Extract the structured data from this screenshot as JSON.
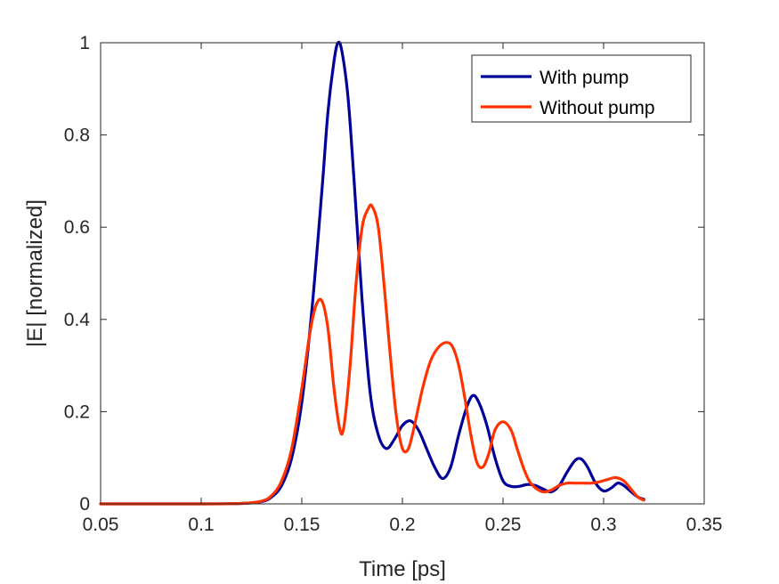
{
  "chart_data": {
    "type": "line",
    "title": "",
    "xlabel": "Time [ps]",
    "ylabel": "|E| [normalized]",
    "xlim": [
      0.05,
      0.35
    ],
    "ylim": [
      0,
      1
    ],
    "xticks": [
      0.05,
      0.1,
      0.15,
      0.2,
      0.25,
      0.3,
      0.35
    ],
    "xtick_labels": [
      "0.05",
      "0.1",
      "0.15",
      "0.2",
      "0.25",
      "0.3",
      "0.35"
    ],
    "yticks": [
      0,
      0.2,
      0.4,
      0.6,
      0.8,
      1
    ],
    "ytick_labels": [
      "0",
      "0.2",
      "0.4",
      "0.6",
      "0.8",
      "1"
    ],
    "grid": false,
    "legend_position": "top-right",
    "series": [
      {
        "name": "With pump",
        "color": "#000099",
        "x": [
          0.05,
          0.1,
          0.12,
          0.13,
          0.135,
          0.14,
          0.145,
          0.15,
          0.155,
          0.16,
          0.163,
          0.166,
          0.168,
          0.17,
          0.173,
          0.176,
          0.18,
          0.184,
          0.188,
          0.192,
          0.196,
          0.2,
          0.204,
          0.208,
          0.212,
          0.216,
          0.22,
          0.224,
          0.228,
          0.232,
          0.235,
          0.238,
          0.242,
          0.246,
          0.25,
          0.254,
          0.258,
          0.262,
          0.266,
          0.27,
          0.274,
          0.278,
          0.282,
          0.286,
          0.289,
          0.292,
          0.296,
          0.3,
          0.304,
          0.307,
          0.31,
          0.314,
          0.317,
          0.32
        ],
        "values": [
          0,
          0,
          0.001,
          0.005,
          0.015,
          0.04,
          0.1,
          0.22,
          0.42,
          0.68,
          0.85,
          0.96,
          1.0,
          0.98,
          0.88,
          0.7,
          0.44,
          0.24,
          0.15,
          0.12,
          0.14,
          0.17,
          0.18,
          0.16,
          0.12,
          0.08,
          0.055,
          0.08,
          0.15,
          0.21,
          0.235,
          0.22,
          0.17,
          0.1,
          0.05,
          0.038,
          0.038,
          0.042,
          0.04,
          0.032,
          0.026,
          0.04,
          0.07,
          0.095,
          0.097,
          0.08,
          0.045,
          0.028,
          0.035,
          0.045,
          0.04,
          0.025,
          0.015,
          0.01
        ]
      },
      {
        "name": "Without pump",
        "color": "#ff3300",
        "x": [
          0.05,
          0.1,
          0.12,
          0.13,
          0.135,
          0.14,
          0.145,
          0.15,
          0.154,
          0.157,
          0.16,
          0.163,
          0.166,
          0.169,
          0.171,
          0.174,
          0.177,
          0.18,
          0.183,
          0.185,
          0.188,
          0.191,
          0.194,
          0.197,
          0.2,
          0.203,
          0.206,
          0.21,
          0.214,
          0.218,
          0.222,
          0.225,
          0.228,
          0.231,
          0.234,
          0.237,
          0.24,
          0.243,
          0.246,
          0.25,
          0.254,
          0.257,
          0.26,
          0.263,
          0.266,
          0.27,
          0.274,
          0.278,
          0.282,
          0.286,
          0.29,
          0.294,
          0.298,
          0.302,
          0.306,
          0.31,
          0.314,
          0.317,
          0.32
        ],
        "values": [
          0,
          0,
          0.001,
          0.006,
          0.018,
          0.05,
          0.12,
          0.25,
          0.37,
          0.43,
          0.44,
          0.38,
          0.25,
          0.16,
          0.17,
          0.3,
          0.48,
          0.6,
          0.64,
          0.645,
          0.6,
          0.47,
          0.32,
          0.19,
          0.12,
          0.12,
          0.17,
          0.25,
          0.31,
          0.34,
          0.35,
          0.34,
          0.3,
          0.23,
          0.15,
          0.09,
          0.08,
          0.11,
          0.16,
          0.178,
          0.16,
          0.12,
          0.08,
          0.05,
          0.035,
          0.026,
          0.03,
          0.04,
          0.045,
          0.045,
          0.045,
          0.045,
          0.048,
          0.053,
          0.057,
          0.05,
          0.03,
          0.015,
          0.008
        ]
      }
    ]
  }
}
